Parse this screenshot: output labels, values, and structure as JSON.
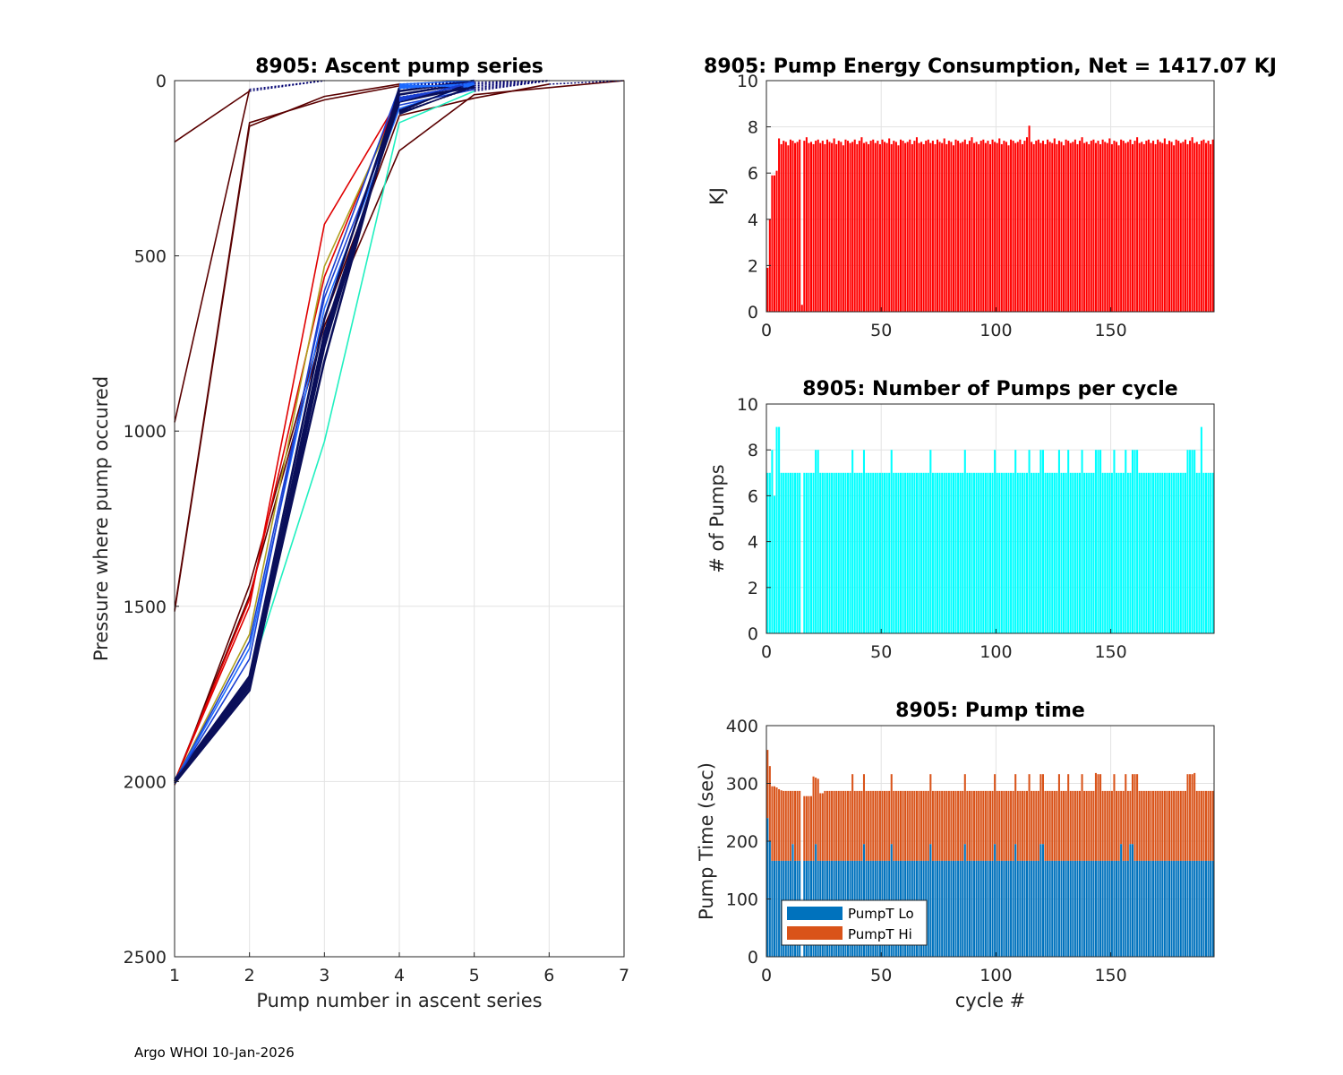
{
  "footer": "Argo WHOI 10-Jan-2026",
  "chart_data": [
    {
      "id": "ascent",
      "type": "line",
      "title": "8905: Ascent pump series",
      "xlabel": "Pump number in ascent series",
      "ylabel": "Pressure where pump occured",
      "xlim": [
        1,
        7
      ],
      "ylim": [
        0,
        2500
      ],
      "y_reversed": true,
      "xticks": [
        "1",
        "2",
        "3",
        "4",
        "5",
        "6",
        "7"
      ],
      "yticks": [
        "0",
        "500",
        "1000",
        "1500",
        "2000",
        "2500"
      ],
      "grid": true,
      "colors": {
        "early": "#5a0000",
        "red": "#e00000",
        "cyan": "#20f0c0",
        "olive": "#b0a020",
        "mid": "#1a3fd0",
        "navy": "#0a0f5a",
        "blue": "#1e6bff",
        "dotted": "#000070"
      },
      "series": [
        {
          "name": "c1",
          "color_key": "early",
          "x": [
            1,
            2
          ],
          "y": [
            175,
            30
          ],
          "dotted_x": [
            2,
            3
          ],
          "dotted_y": [
            30,
            0
          ]
        },
        {
          "name": "c2",
          "color_key": "early",
          "x": [
            1,
            2
          ],
          "y": [
            975,
            25
          ],
          "dotted_x": [
            2,
            3
          ],
          "dotted_y": [
            25,
            0
          ]
        },
        {
          "name": "c3",
          "color_key": "early",
          "x": [
            1,
            2,
            3,
            4
          ],
          "y": [
            1510,
            120,
            55,
            15
          ],
          "dotted_x": [
            4,
            5
          ],
          "dotted_y": [
            15,
            0
          ]
        },
        {
          "name": "c4",
          "color_key": "early",
          "x": [
            1,
            2,
            3,
            4
          ],
          "y": [
            1515,
            130,
            45,
            10
          ],
          "dotted_x": [
            4,
            5
          ],
          "dotted_y": [
            10,
            0
          ]
        },
        {
          "name": "c5",
          "color_key": "early",
          "x": [
            1,
            2,
            3,
            4,
            5,
            6,
            7
          ],
          "y": [
            2000,
            1470,
            700,
            200,
            40,
            20,
            0
          ]
        },
        {
          "name": "c6",
          "color_key": "early",
          "x": [
            1,
            2,
            3,
            4,
            5,
            6
          ],
          "y": [
            2010,
            1440,
            680,
            100,
            50,
            10
          ],
          "dotted_x": [
            6,
            7
          ],
          "dotted_y": [
            10,
            0
          ]
        },
        {
          "name": "c7",
          "color_key": "red",
          "x": [
            1,
            2,
            3,
            4,
            5
          ],
          "y": [
            2000,
            1500,
            410,
            50,
            20
          ],
          "dotted_x": [
            5,
            6
          ],
          "dotted_y": [
            20,
            0
          ]
        },
        {
          "name": "c8",
          "color_key": "red",
          "x": [
            1,
            2,
            3,
            4
          ],
          "y": [
            2000,
            1480,
            560,
            40
          ],
          "dotted_x": [
            4,
            5
          ],
          "dotted_y": [
            40,
            0
          ]
        },
        {
          "name": "c9",
          "color_key": "cyan",
          "x": [
            1,
            2,
            3,
            4,
            5
          ],
          "y": [
            2000,
            1700,
            1030,
            120,
            30
          ],
          "dotted_x": [
            5,
            6
          ],
          "dotted_y": [
            30,
            0
          ]
        },
        {
          "name": "c10",
          "color_key": "olive",
          "x": [
            1,
            2,
            3,
            4
          ],
          "y": [
            2000,
            1580,
            530,
            60
          ],
          "dotted_x": [
            4,
            5
          ],
          "dotted_y": [
            60,
            0
          ]
        },
        {
          "name": "c11",
          "color_key": "mid",
          "x": [
            1,
            2,
            3,
            4,
            5
          ],
          "y": [
            2000,
            1600,
            620,
            70,
            25
          ],
          "dotted_x": [
            5,
            6
          ],
          "dotted_y": [
            25,
            0
          ]
        },
        {
          "name": "c12",
          "color_key": "blue",
          "x": [
            1,
            2,
            3,
            4,
            5
          ],
          "y": [
            2000,
            1620,
            650,
            80,
            10
          ],
          "dotted_x": [
            5,
            6
          ],
          "dotted_y": [
            10,
            0
          ]
        },
        {
          "name": "c13",
          "color_key": "navy",
          "x": [
            1,
            2,
            3,
            4,
            5
          ],
          "y": [
            2000,
            1720,
            720,
            60,
            15
          ],
          "dotted_x": [
            5,
            6
          ],
          "dotted_y": [
            15,
            0
          ]
        },
        {
          "name": "c14",
          "color_key": "navy",
          "x": [
            1,
            2,
            3,
            4,
            5
          ],
          "y": [
            2005,
            1740,
            760,
            40,
            5
          ],
          "dotted_x": [
            5,
            6
          ],
          "dotted_y": [
            5,
            0
          ]
        },
        {
          "name": "c15",
          "color_key": "navy",
          "x": [
            1,
            2,
            3,
            4,
            5
          ],
          "y": [
            1995,
            1700,
            680,
            30,
            0
          ]
        },
        {
          "name": "c16",
          "color_key": "mid",
          "x": [
            1,
            2,
            3,
            4,
            5
          ],
          "y": [
            2000,
            1650,
            600,
            20,
            10
          ]
        },
        {
          "name": "c17",
          "color_key": "navy",
          "x": [
            1,
            2,
            3,
            4
          ],
          "y": [
            2000,
            1730,
            800,
            20
          ],
          "dotted_x": [
            4,
            5
          ],
          "dotted_y": [
            20,
            0
          ]
        },
        {
          "name": "c18",
          "color_key": "navy",
          "x": [
            1,
            2,
            3,
            4,
            5
          ],
          "y": [
            2000,
            1710,
            740,
            50,
            20
          ]
        }
      ]
    },
    {
      "id": "energy",
      "type": "bar",
      "title": "8905: Pump Energy Consumption,  Net = 1417.07 KJ",
      "xlabel": "",
      "ylabel": "KJ",
      "xlim": [
        0,
        195
      ],
      "ylim": [
        0,
        10
      ],
      "xticks": [
        "0",
        "50",
        "100",
        "150"
      ],
      "yticks": [
        "0",
        "2",
        "4",
        "6",
        "8",
        "10"
      ],
      "grid": true,
      "color": "#ff0000",
      "base_value": 7.35,
      "overrides": {
        "0": 1.9,
        "1": 4.0,
        "2": 5.9,
        "3": 5.9,
        "4": 6.1,
        "15": 0.3,
        "114": 8.05
      },
      "variation": [
        0.05,
        -0.1,
        0.1,
        0.0,
        -0.05,
        0.15,
        -0.1,
        0.05,
        0.0,
        -0.15,
        0.1,
        0.05,
        -0.05,
        0.0,
        0.1,
        -0.1,
        0.05,
        0.2,
        -0.05,
        0.0,
        -0.1,
        0.05,
        0.1,
        -0.05
      ]
    },
    {
      "id": "pumps",
      "type": "bar",
      "title": "8905: Number of Pumps per cycle",
      "xlabel": "",
      "ylabel": "# of Pumps",
      "xlim": [
        0,
        195
      ],
      "ylim": [
        0,
        10
      ],
      "xticks": [
        "0",
        "50",
        "100",
        "150"
      ],
      "yticks": [
        "0",
        "2",
        "4",
        "6",
        "8",
        "10"
      ],
      "grid": true,
      "color": "#00ffff",
      "base_value": 7,
      "overrides": {
        "2": 8,
        "3": 6,
        "4": 9,
        "5": 9,
        "6": 7,
        "15": 0,
        "21": 8,
        "22": 8,
        "37": 8,
        "42": 8,
        "54": 8,
        "71": 8,
        "86": 8,
        "99": 8,
        "108": 8,
        "114": 8,
        "119": 8,
        "120": 8,
        "127": 8,
        "131": 8,
        "137": 8,
        "143": 8,
        "144": 8,
        "145": 8,
        "151": 8,
        "156": 8,
        "159": 8,
        "160": 8,
        "161": 8,
        "183": 8,
        "184": 8,
        "185": 8,
        "186": 8,
        "189": 9
      }
    },
    {
      "id": "pumptime",
      "type": "bar",
      "stacked": true,
      "title": "8905: Pump time",
      "xlabel": "cycle #",
      "ylabel": "Pump Time (sec)",
      "xlim": [
        0,
        195
      ],
      "ylim": [
        0,
        400
      ],
      "xticks": [
        "0",
        "50",
        "100",
        "150"
      ],
      "yticks": [
        "0",
        "100",
        "200",
        "300",
        "400"
      ],
      "grid": true,
      "legend": {
        "position": "bottom-left",
        "entries": [
          "PumpT Lo",
          "PumpT Hi"
        ]
      },
      "colors": [
        "#0072bd",
        "#d95319"
      ],
      "lo_base": 166,
      "lo_overrides": {
        "0": 240,
        "1": 200,
        "11": 195,
        "21": 195,
        "42": 195,
        "54": 195,
        "71": 195,
        "86": 195,
        "99": 195,
        "108": 195,
        "119": 195,
        "120": 195,
        "154": 195,
        "158": 195,
        "159": 195,
        "15": 0
      },
      "total_base": 287,
      "total_overrides": {
        "0": 358,
        "1": 330,
        "2": 295,
        "3": 295,
        "4": 293,
        "5": 290,
        "6": 288,
        "15": 0,
        "16": 278,
        "17": 278,
        "18": 278,
        "19": 278,
        "20": 312,
        "21": 310,
        "22": 308,
        "23": 283,
        "24": 283,
        "37": 316,
        "42": 316,
        "54": 316,
        "71": 316,
        "86": 316,
        "99": 316,
        "108": 316,
        "114": 316,
        "119": 316,
        "120": 316,
        "127": 316,
        "131": 316,
        "137": 316,
        "143": 318,
        "144": 316,
        "145": 316,
        "151": 316,
        "156": 316,
        "159": 316,
        "160": 316,
        "161": 316,
        "183": 316,
        "184": 316,
        "185": 316,
        "186": 318
      }
    }
  ]
}
